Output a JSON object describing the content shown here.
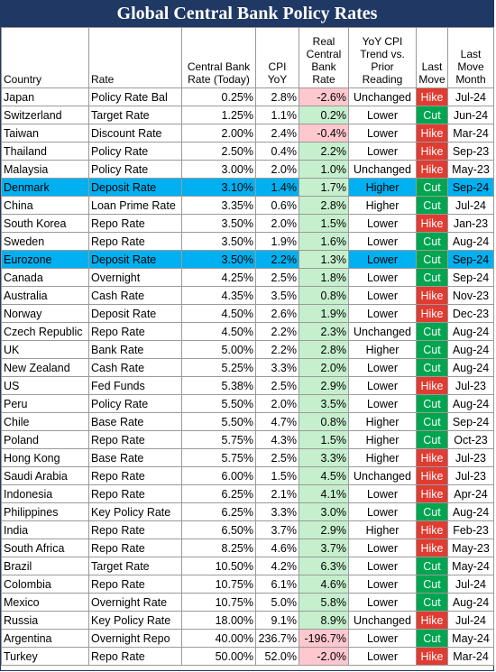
{
  "title": "Global Central Bank Policy Rates",
  "headers": {
    "country": "Country",
    "rate": "Rate",
    "central": "Central Bank Rate (Today)",
    "cpi": "CPI YoY",
    "real": "Real Central Bank Rate",
    "trend": "YoY CPI Trend vs. Prior Reading",
    "move": "Last Move",
    "month": "Last Move Month"
  },
  "colors": {
    "header_bg": "#1f3864",
    "highlight_row": "#00b0f0",
    "negative_real": "#ffc7ce",
    "positive_real": "#c6efce",
    "hike": "#e03c32",
    "cut": "#00a550"
  },
  "chart_data": {
    "type": "table",
    "title": "Global Central Bank Policy Rates",
    "columns": [
      "Country",
      "Rate",
      "Central Bank Rate (Today)",
      "CPI YoY",
      "Real Central Bank Rate",
      "YoY CPI Trend vs. Prior Reading",
      "Last Move",
      "Last Move Month"
    ],
    "rows": [
      {
        "country": "Japan",
        "rate": "Policy Rate Bal",
        "central": "0.25%",
        "cpi": "2.8%",
        "real": "-2.6%",
        "trend": "Unchanged",
        "move": "Hike",
        "month": "Jul-24",
        "hl": false
      },
      {
        "country": "Switzerland",
        "rate": "Target Rate",
        "central": "1.25%",
        "cpi": "1.1%",
        "real": "0.2%",
        "trend": "Lower",
        "move": "Cut",
        "month": "Jun-24",
        "hl": false
      },
      {
        "country": "Taiwan",
        "rate": "Discount Rate",
        "central": "2.00%",
        "cpi": "2.4%",
        "real": "-0.4%",
        "trend": "Lower",
        "move": "Hike",
        "month": "Mar-24",
        "hl": false
      },
      {
        "country": "Thailand",
        "rate": "Policy Rate",
        "central": "2.50%",
        "cpi": "0.4%",
        "real": "2.2%",
        "trend": "Lower",
        "move": "Hike",
        "month": "Sep-23",
        "hl": false
      },
      {
        "country": "Malaysia",
        "rate": "Policy Rate",
        "central": "3.00%",
        "cpi": "2.0%",
        "real": "1.0%",
        "trend": "Unchanged",
        "move": "Hike",
        "month": "May-23",
        "hl": false
      },
      {
        "country": "Denmark",
        "rate": "Deposit Rate",
        "central": "3.10%",
        "cpi": "1.4%",
        "real": "1.7%",
        "trend": "Higher",
        "move": "Cut",
        "month": "Sep-24",
        "hl": true
      },
      {
        "country": "China",
        "rate": "Loan Prime Rate",
        "central": "3.35%",
        "cpi": "0.6%",
        "real": "2.8%",
        "trend": "Higher",
        "move": "Cut",
        "month": "Jul-24",
        "hl": false
      },
      {
        "country": "South Korea",
        "rate": "Repo Rate",
        "central": "3.50%",
        "cpi": "2.0%",
        "real": "1.5%",
        "trend": "Lower",
        "move": "Hike",
        "month": "Jan-23",
        "hl": false
      },
      {
        "country": "Sweden",
        "rate": "Repo Rate",
        "central": "3.50%",
        "cpi": "1.9%",
        "real": "1.6%",
        "trend": "Lower",
        "move": "Cut",
        "month": "Aug-24",
        "hl": false
      },
      {
        "country": "Eurozone",
        "rate": "Deposit Rate",
        "central": "3.50%",
        "cpi": "2.2%",
        "real": "1.3%",
        "trend": "Lower",
        "move": "Cut",
        "month": "Sep-24",
        "hl": true
      },
      {
        "country": "Canada",
        "rate": "Overnight",
        "central": "4.25%",
        "cpi": "2.5%",
        "real": "1.8%",
        "trend": "Lower",
        "move": "Cut",
        "month": "Sep-24",
        "hl": false
      },
      {
        "country": "Australia",
        "rate": "Cash Rate",
        "central": "4.35%",
        "cpi": "3.5%",
        "real": "0.8%",
        "trend": "Lower",
        "move": "Hike",
        "month": "Nov-23",
        "hl": false
      },
      {
        "country": "Norway",
        "rate": "Deposit Rate",
        "central": "4.50%",
        "cpi": "2.6%",
        "real": "1.9%",
        "trend": "Lower",
        "move": "Hike",
        "month": "Dec-23",
        "hl": false
      },
      {
        "country": "Czech Republic",
        "rate": "Repo Rate",
        "central": "4.50%",
        "cpi": "2.2%",
        "real": "2.3%",
        "trend": "Unchanged",
        "move": "Cut",
        "month": "Aug-24",
        "hl": false
      },
      {
        "country": "UK",
        "rate": "Bank Rate",
        "central": "5.00%",
        "cpi": "2.2%",
        "real": "2.8%",
        "trend": "Higher",
        "move": "Cut",
        "month": "Aug-24",
        "hl": false
      },
      {
        "country": "New Zealand",
        "rate": "Cash Rate",
        "central": "5.25%",
        "cpi": "3.3%",
        "real": "2.0%",
        "trend": "Lower",
        "move": "Cut",
        "month": "Aug-24",
        "hl": false
      },
      {
        "country": "US",
        "rate": "Fed Funds",
        "central": "5.38%",
        "cpi": "2.5%",
        "real": "2.9%",
        "trend": "Lower",
        "move": "Hike",
        "month": "Jul-23",
        "hl": false
      },
      {
        "country": "Peru",
        "rate": "Policy Rate",
        "central": "5.50%",
        "cpi": "2.0%",
        "real": "3.5%",
        "trend": "Lower",
        "move": "Cut",
        "month": "Aug-24",
        "hl": false
      },
      {
        "country": "Chile",
        "rate": "Base Rate",
        "central": "5.50%",
        "cpi": "4.7%",
        "real": "0.8%",
        "trend": "Higher",
        "move": "Cut",
        "month": "Sep-24",
        "hl": false
      },
      {
        "country": "Poland",
        "rate": "Repo Rate",
        "central": "5.75%",
        "cpi": "4.3%",
        "real": "1.5%",
        "trend": "Higher",
        "move": "Cut",
        "month": "Oct-23",
        "hl": false
      },
      {
        "country": "Hong Kong",
        "rate": "Base Rate",
        "central": "5.75%",
        "cpi": "2.5%",
        "real": "3.3%",
        "trend": "Higher",
        "move": "Hike",
        "month": "Jul-23",
        "hl": false
      },
      {
        "country": "Saudi Arabia",
        "rate": "Repo Rate",
        "central": "6.00%",
        "cpi": "1.5%",
        "real": "4.5%",
        "trend": "Unchanged",
        "move": "Hike",
        "month": "Jul-23",
        "hl": false
      },
      {
        "country": "Indonesia",
        "rate": "Repo Rate",
        "central": "6.25%",
        "cpi": "2.1%",
        "real": "4.1%",
        "trend": "Lower",
        "move": "Hike",
        "month": "Apr-24",
        "hl": false
      },
      {
        "country": "Philippines",
        "rate": "Key Policy Rate",
        "central": "6.25%",
        "cpi": "3.3%",
        "real": "3.0%",
        "trend": "Lower",
        "move": "Cut",
        "month": "Aug-24",
        "hl": false
      },
      {
        "country": "India",
        "rate": "Repo Rate",
        "central": "6.50%",
        "cpi": "3.7%",
        "real": "2.9%",
        "trend": "Higher",
        "move": "Hike",
        "month": "Feb-23",
        "hl": false
      },
      {
        "country": "South Africa",
        "rate": "Repo Rate",
        "central": "8.25%",
        "cpi": "4.6%",
        "real": "3.7%",
        "trend": "Lower",
        "move": "Hike",
        "month": "May-23",
        "hl": false
      },
      {
        "country": "Brazil",
        "rate": "Target Rate",
        "central": "10.50%",
        "cpi": "4.2%",
        "real": "6.3%",
        "trend": "Lower",
        "move": "Cut",
        "month": "May-24",
        "hl": false
      },
      {
        "country": "Colombia",
        "rate": "Repo Rate",
        "central": "10.75%",
        "cpi": "6.1%",
        "real": "4.6%",
        "trend": "Lower",
        "move": "Cut",
        "month": "Jul-24",
        "hl": false
      },
      {
        "country": "Mexico",
        "rate": "Overnight Rate",
        "central": "10.75%",
        "cpi": "5.0%",
        "real": "5.8%",
        "trend": "Lower",
        "move": "Cut",
        "month": "Aug-24",
        "hl": false
      },
      {
        "country": "Russia",
        "rate": "Key Policy Rate",
        "central": "18.00%",
        "cpi": "9.1%",
        "real": "8.9%",
        "trend": "Unchanged",
        "move": "Hike",
        "month": "Jul-24",
        "hl": false
      },
      {
        "country": "Argentina",
        "rate": "Overnight Repo",
        "central": "40.00%",
        "cpi": "236.7%",
        "real": "-196.7%",
        "trend": "Lower",
        "move": "Cut",
        "month": "May-24",
        "hl": false
      },
      {
        "country": "Turkey",
        "rate": "Repo Rate",
        "central": "50.00%",
        "cpi": "52.0%",
        "real": "-2.0%",
        "trend": "Lower",
        "move": "Hike",
        "month": "Mar-24",
        "hl": false
      }
    ]
  }
}
